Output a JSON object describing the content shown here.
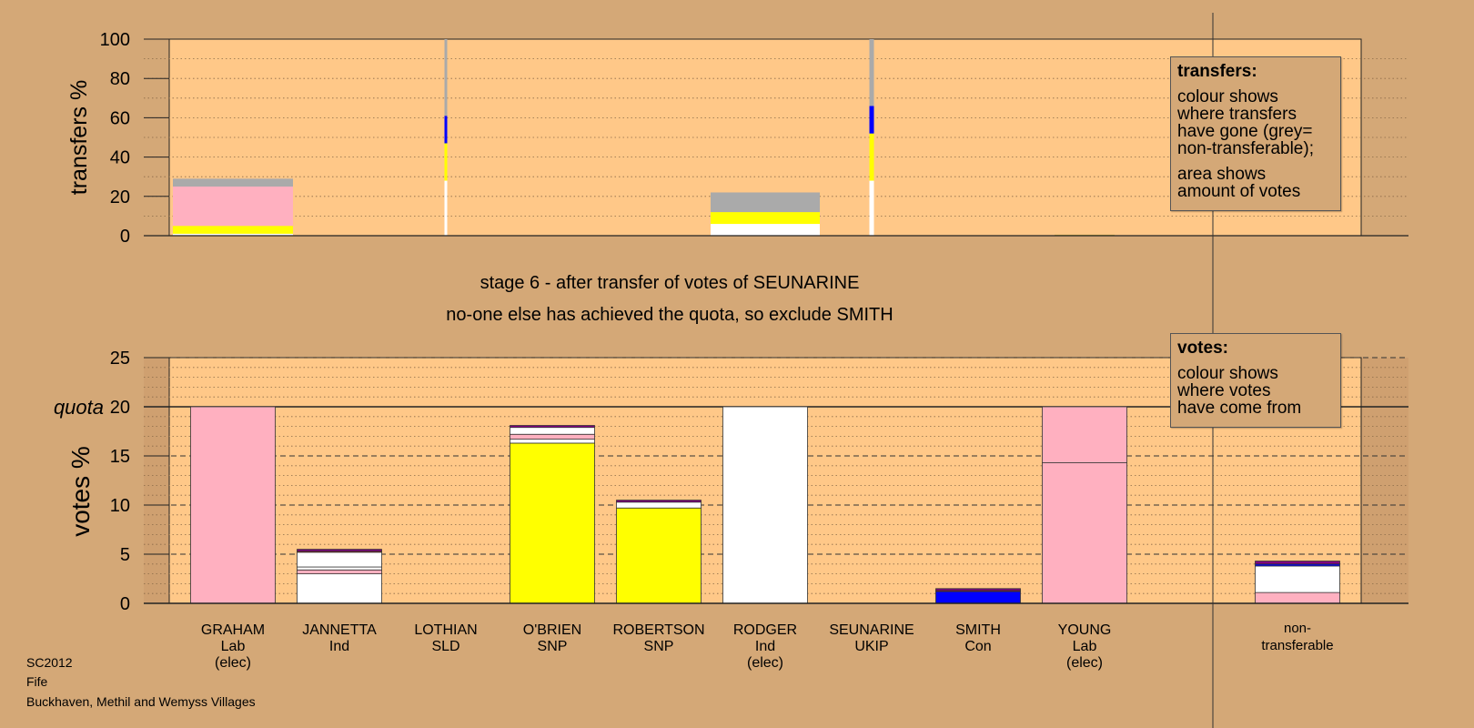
{
  "chart_data": [
    {
      "id": "transfers",
      "type": "bar",
      "stacked": true,
      "ylabel": "transfers %",
      "ylim": [
        0,
        100
      ],
      "yticks": [
        0,
        20,
        40,
        60,
        80,
        100
      ],
      "grid": "dotted",
      "categories": [
        "GRAHAM",
        "JANNETTA",
        "LOTHIAN",
        "O'BRIEN",
        "ROBERTSON",
        "RODGER",
        "SEUNARINE",
        "SMITH",
        "YOUNG"
      ],
      "bars": [
        {
          "candidate": "GRAHAM",
          "width_share": 1.0,
          "segments": [
            {
              "color": "#ffffff",
              "value": 1
            },
            {
              "color": "#ffff00",
              "value": 4
            },
            {
              "color": "#ffb0c0",
              "value": 20
            },
            {
              "color": "#aaaaaa",
              "value": 4
            }
          ]
        },
        {
          "candidate": "LOTHIAN",
          "width_share": 0.02,
          "segments": [
            {
              "color": "#ffffff",
              "value": 28
            },
            {
              "color": "#ffff00",
              "value": 19
            },
            {
              "color": "#0000ff",
              "value": 14
            },
            {
              "color": "#aaaaaa",
              "value": 39
            }
          ]
        },
        {
          "candidate": "RODGER",
          "width_share": 0.9,
          "segments": [
            {
              "color": "#ffffff",
              "value": 6
            },
            {
              "color": "#ffff00",
              "value": 6
            },
            {
              "color": "#aaaaaa",
              "value": 10
            }
          ]
        },
        {
          "candidate": "SEUNARINE",
          "width_share": 0.04,
          "segments": [
            {
              "color": "#ffffff",
              "value": 28
            },
            {
              "color": "#ffff00",
              "value": 24
            },
            {
              "color": "#0000ff",
              "value": 14
            },
            {
              "color": "#aaaaaa",
              "value": 34
            }
          ]
        },
        {
          "candidate": "YOUNG",
          "width_share": 0.5,
          "segments": [
            {
              "color": "#c8b040",
              "value": 0.5
            }
          ]
        }
      ]
    },
    {
      "id": "votes",
      "type": "bar",
      "stacked": true,
      "ylabel": "votes %",
      "ylim": [
        0,
        25
      ],
      "yticks": [
        0,
        5,
        10,
        15,
        20,
        25
      ],
      "quota": 20,
      "quota_label": "quota",
      "grid": "dashed",
      "categories": [
        "GRAHAM",
        "JANNETTA",
        "LOTHIAN",
        "O'BRIEN",
        "ROBERTSON",
        "RODGER",
        "SEUNARINE",
        "SMITH",
        "YOUNG",
        "non-transferable"
      ],
      "bars": [
        {
          "candidate": "GRAHAM",
          "segments": [
            {
              "color": "#ffb0c0",
              "value": 20
            }
          ]
        },
        {
          "candidate": "JANNETTA",
          "segments": [
            {
              "color": "#ffffff",
              "value": 3.0
            },
            {
              "color": "#ffb0c0",
              "value": 0.4
            },
            {
              "color": "#ffffff",
              "value": 0.3
            },
            {
              "color": "#ffffff",
              "value": 1.5
            },
            {
              "color": "#ff0000",
              "value": 0.1
            },
            {
              "color": "#800080",
              "value": 0.2
            }
          ]
        },
        {
          "candidate": "LOTHIAN",
          "segments": []
        },
        {
          "candidate": "O'BRIEN",
          "segments": [
            {
              "color": "#ffff00",
              "value": 16.3
            },
            {
              "color": "#ffffff",
              "value": 0.4
            },
            {
              "color": "#ffb0c0",
              "value": 0.5
            },
            {
              "color": "#ffffff",
              "value": 0.7
            },
            {
              "color": "#800080",
              "value": 0.2
            }
          ]
        },
        {
          "candidate": "ROBERTSON",
          "segments": [
            {
              "color": "#ffff00",
              "value": 9.7
            },
            {
              "color": "#ffffff",
              "value": 0.6
            },
            {
              "color": "#800080",
              "value": 0.2
            }
          ]
        },
        {
          "candidate": "RODGER",
          "segments": [
            {
              "color": "#ffffff",
              "value": 20
            }
          ]
        },
        {
          "candidate": "SEUNARINE",
          "segments": []
        },
        {
          "candidate": "SMITH",
          "segments": [
            {
              "color": "#0000ff",
              "value": 1.2
            },
            {
              "color": "#ff0000",
              "value": 0.1
            },
            {
              "color": "#800080",
              "value": 0.2
            }
          ]
        },
        {
          "candidate": "YOUNG",
          "segments": [
            {
              "color": "#ffb0c0",
              "value": 14.3
            },
            {
              "color": "#ffb0c0",
              "value": 5.7
            }
          ]
        },
        {
          "candidate": "non-transferable",
          "segments": [
            {
              "color": "#ffb0c0",
              "value": 1.1
            },
            {
              "color": "#ffffff",
              "value": 2.7
            },
            {
              "color": "#0000ff",
              "value": 0.2
            },
            {
              "color": "#800080",
              "value": 0.3
            }
          ]
        }
      ]
    }
  ],
  "candidates": [
    {
      "name": "GRAHAM",
      "party": "Lab",
      "note": "(elec)"
    },
    {
      "name": "JANNETTA",
      "party": "Ind",
      "note": ""
    },
    {
      "name": "LOTHIAN",
      "party": "SLD",
      "note": ""
    },
    {
      "name": "O'BRIEN",
      "party": "SNP",
      "note": ""
    },
    {
      "name": "ROBERTSON",
      "party": "SNP",
      "note": ""
    },
    {
      "name": "RODGER",
      "party": "Ind",
      "note": "(elec)"
    },
    {
      "name": "SEUNARINE",
      "party": "UKIP",
      "note": ""
    },
    {
      "name": "SMITH",
      "party": "Con",
      "note": ""
    },
    {
      "name": "YOUNG",
      "party": "Lab",
      "note": "(elec)"
    }
  ],
  "nontransferable_label": [
    "non-",
    "transferable"
  ],
  "stage_text": "stage 6 - after transfer of votes of SEUNARINE",
  "status_text": "no-one else has achieved the quota, so exclude SMITH",
  "legend_transfers": {
    "title": "transfers:",
    "para1": [
      "colour shows",
      "where transfers",
      "have gone (grey=",
      "non-transferable);"
    ],
    "para2": [
      "area shows",
      "amount of votes"
    ]
  },
  "legend_votes": {
    "title": "votes:",
    "para1": [
      "colour shows",
      "where votes",
      "have come from"
    ]
  },
  "footer": {
    "line1": "SC2012",
    "line2": "Fife",
    "line3": "Buckhaven, Methil and Wemyss Villages"
  },
  "colors": {
    "background": "#d4a877",
    "plot_area": "#ffc888",
    "side_area": "#d4a877"
  }
}
